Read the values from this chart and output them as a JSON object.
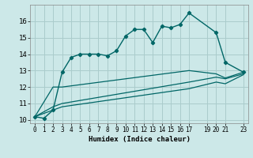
{
  "xlabel": "Humidex (Indice chaleur)",
  "ylabel": "",
  "bg_color": "#cce8e8",
  "grid_color": "#aacccc",
  "line_color": "#006666",
  "xlim": [
    -0.5,
    23.5
  ],
  "ylim": [
    9.8,
    17.0
  ],
  "yticks": [
    10,
    11,
    12,
    13,
    14,
    15,
    16
  ],
  "xticks": [
    0,
    1,
    2,
    3,
    4,
    5,
    6,
    7,
    8,
    9,
    10,
    11,
    12,
    13,
    14,
    15,
    16,
    17,
    19,
    20,
    21,
    23
  ],
  "xtick_labels": [
    "0",
    "1",
    "2",
    "3",
    "4",
    "5",
    "6",
    "7",
    "8",
    "9",
    "10",
    "11",
    "12",
    "13",
    "14",
    "15",
    "16",
    "17",
    "19",
    "20",
    "21",
    "23"
  ],
  "series": [
    {
      "x": [
        0,
        1,
        2,
        3,
        4,
        5,
        6,
        7,
        8,
        9,
        10,
        11,
        12,
        13,
        14,
        15,
        16,
        17,
        20,
        21,
        23
      ],
      "y": [
        10.2,
        10.1,
        10.6,
        12.9,
        13.8,
        14.0,
        14.0,
        14.0,
        13.9,
        14.2,
        15.1,
        15.5,
        15.5,
        14.7,
        15.7,
        15.6,
        15.8,
        16.5,
        15.3,
        13.5,
        12.9
      ],
      "marker": true
    },
    {
      "x": [
        0,
        2,
        3,
        17,
        20,
        21,
        23
      ],
      "y": [
        10.2,
        12.0,
        12.0,
        13.0,
        12.8,
        12.55,
        12.9
      ],
      "marker": false
    },
    {
      "x": [
        0,
        2,
        3,
        17,
        20,
        21,
        23
      ],
      "y": [
        10.2,
        10.8,
        11.0,
        12.3,
        12.6,
        12.5,
        12.8
      ],
      "marker": false
    },
    {
      "x": [
        0,
        2,
        3,
        17,
        20,
        21,
        23
      ],
      "y": [
        10.2,
        10.6,
        10.8,
        11.9,
        12.3,
        12.2,
        12.75
      ],
      "marker": false
    }
  ]
}
